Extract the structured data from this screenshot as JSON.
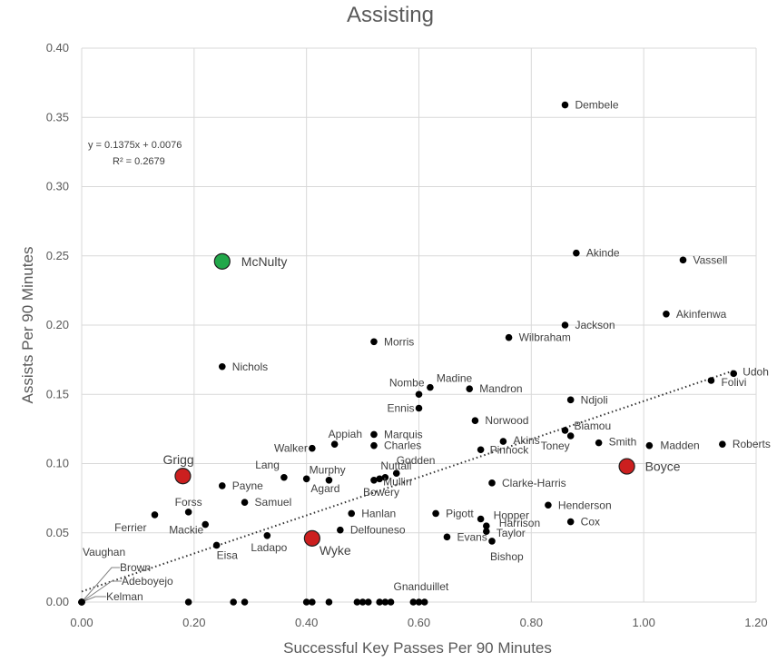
{
  "chart_data": {
    "type": "scatter",
    "title": "Assisting",
    "xlabel": "Successful Key Passes Per 90 Minutes",
    "ylabel": "Assists Per 90 Minutes",
    "xlim": [
      0,
      1.2
    ],
    "ylim": [
      0,
      0.4
    ],
    "xticks": [
      "0.00",
      "0.20",
      "0.40",
      "0.60",
      "0.80",
      "1.00",
      "1.20"
    ],
    "yticks": [
      "0.00",
      "0.05",
      "0.10",
      "0.15",
      "0.20",
      "0.25",
      "0.30",
      "0.35",
      "0.40"
    ],
    "grid": true,
    "trendline": {
      "type": "linear",
      "slope": 0.1375,
      "intercept": 0.0076,
      "equation_text": "y = 0.1375x + 0.0076",
      "r2_text": "R² = 0.2679"
    },
    "colors": {
      "default": "#000000",
      "highlight_red": "#cc1f1f",
      "highlight_green": "#22a84a",
      "grid": "#d9d9d9",
      "text": "#595959"
    },
    "points": [
      {
        "name": "Dembele",
        "x": 0.86,
        "y": 0.359
      },
      {
        "name": "Akinde",
        "x": 0.88,
        "y": 0.252
      },
      {
        "name": "Vassell",
        "x": 1.07,
        "y": 0.247
      },
      {
        "name": "Akinfenwa",
        "x": 1.04,
        "y": 0.208
      },
      {
        "name": "Jackson",
        "x": 0.86,
        "y": 0.2
      },
      {
        "name": "Wilbraham",
        "x": 0.76,
        "y": 0.191
      },
      {
        "name": "Morris",
        "x": 0.52,
        "y": 0.188
      },
      {
        "name": "Nichols",
        "x": 0.25,
        "y": 0.17
      },
      {
        "name": "Udoh",
        "x": 1.16,
        "y": 0.165
      },
      {
        "name": "Folivi",
        "x": 1.12,
        "y": 0.16
      },
      {
        "name": "Madine",
        "x": 0.62,
        "y": 0.155
      },
      {
        "name": "Mandron",
        "x": 0.69,
        "y": 0.154
      },
      {
        "name": "Nombe",
        "x": 0.6,
        "y": 0.15
      },
      {
        "name": "Ndjoli",
        "x": 0.87,
        "y": 0.146
      },
      {
        "name": "Ennis",
        "x": 0.6,
        "y": 0.14
      },
      {
        "name": "Norwood",
        "x": 0.7,
        "y": 0.131
      },
      {
        "name": "Biamou",
        "x": 0.86,
        "y": 0.124
      },
      {
        "name": "Marquis",
        "x": 0.52,
        "y": 0.121
      },
      {
        "name": "Toney",
        "x": 0.87,
        "y": 0.12
      },
      {
        "name": "Akins",
        "x": 0.75,
        "y": 0.116
      },
      {
        "name": "Smith",
        "x": 0.92,
        "y": 0.115
      },
      {
        "name": "Appiah",
        "x": 0.45,
        "y": 0.114
      },
      {
        "name": "Roberts",
        "x": 1.14,
        "y": 0.114
      },
      {
        "name": "Charles",
        "x": 0.52,
        "y": 0.113
      },
      {
        "name": "Madden",
        "x": 1.01,
        "y": 0.113
      },
      {
        "name": "Walker",
        "x": 0.41,
        "y": 0.111
      },
      {
        "name": "Pinnock",
        "x": 0.71,
        "y": 0.11
      },
      {
        "name": "Godden",
        "x": 0.56,
        "y": 0.093
      },
      {
        "name": "Lang",
        "x": 0.36,
        "y": 0.09
      },
      {
        "name": "Murphy",
        "x": 0.4,
        "y": 0.089
      },
      {
        "name": "Nuttall",
        "x": 0.54,
        "y": 0.09
      },
      {
        "name": "Agard",
        "x": 0.44,
        "y": 0.088
      },
      {
        "name": "Mullin",
        "x": 0.53,
        "y": 0.089
      },
      {
        "name": "Bowery",
        "x": 0.52,
        "y": 0.088
      },
      {
        "name": "Clarke-Harris",
        "x": 0.73,
        "y": 0.086
      },
      {
        "name": "Payne",
        "x": 0.25,
        "y": 0.084
      },
      {
        "name": "Samuel",
        "x": 0.29,
        "y": 0.072
      },
      {
        "name": "Henderson",
        "x": 0.83,
        "y": 0.07
      },
      {
        "name": "Forss",
        "x": 0.19,
        "y": 0.065
      },
      {
        "name": "Hanlan",
        "x": 0.48,
        "y": 0.064
      },
      {
        "name": "Pigott",
        "x": 0.63,
        "y": 0.064
      },
      {
        "name": "Ferrier",
        "x": 0.13,
        "y": 0.063
      },
      {
        "name": "Hopper",
        "x": 0.71,
        "y": 0.06
      },
      {
        "name": "Cox",
        "x": 0.87,
        "y": 0.058
      },
      {
        "name": "Mackie",
        "x": 0.22,
        "y": 0.056
      },
      {
        "name": "Harrison",
        "x": 0.72,
        "y": 0.055
      },
      {
        "name": "Delfouneso",
        "x": 0.46,
        "y": 0.052
      },
      {
        "name": "Taylor",
        "x": 0.72,
        "y": 0.051
      },
      {
        "name": "Ladapo",
        "x": 0.33,
        "y": 0.048
      },
      {
        "name": "Evans",
        "x": 0.65,
        "y": 0.047
      },
      {
        "name": "Bishop",
        "x": 0.73,
        "y": 0.044
      },
      {
        "name": "Eisa",
        "x": 0.24,
        "y": 0.041
      },
      {
        "name": "Gnanduillet",
        "x": 0.6,
        "y": 0.0
      },
      {
        "name": "Vaughan",
        "x": 0.0,
        "y": 0.0
      },
      {
        "name": "Brown",
        "x": 0.0,
        "y": 0.0
      },
      {
        "name": "Adeboyejo",
        "x": 0.0,
        "y": 0.0
      },
      {
        "name": "Kelman",
        "x": 0.0,
        "y": 0.0
      },
      {
        "name": "",
        "x": 0.19,
        "y": 0.0
      },
      {
        "name": "",
        "x": 0.27,
        "y": 0.0
      },
      {
        "name": "",
        "x": 0.29,
        "y": 0.0
      },
      {
        "name": "",
        "x": 0.4,
        "y": 0.0
      },
      {
        "name": "",
        "x": 0.41,
        "y": 0.0
      },
      {
        "name": "",
        "x": 0.44,
        "y": 0.0
      },
      {
        "name": "",
        "x": 0.49,
        "y": 0.0
      },
      {
        "name": "",
        "x": 0.5,
        "y": 0.0
      },
      {
        "name": "",
        "x": 0.51,
        "y": 0.0
      },
      {
        "name": "",
        "x": 0.53,
        "y": 0.0
      },
      {
        "name": "",
        "x": 0.54,
        "y": 0.0
      },
      {
        "name": "",
        "x": 0.55,
        "y": 0.0
      },
      {
        "name": "",
        "x": 0.59,
        "y": 0.0
      },
      {
        "name": "",
        "x": 0.61,
        "y": 0.0
      }
    ],
    "highlights": [
      {
        "name": "McNulty",
        "x": 0.25,
        "y": 0.246,
        "color": "green"
      },
      {
        "name": "Boyce",
        "x": 0.97,
        "y": 0.098,
        "color": "red"
      },
      {
        "name": "Grigg",
        "x": 0.18,
        "y": 0.091,
        "color": "red"
      },
      {
        "name": "Wyke",
        "x": 0.41,
        "y": 0.046,
        "color": "red"
      }
    ]
  }
}
